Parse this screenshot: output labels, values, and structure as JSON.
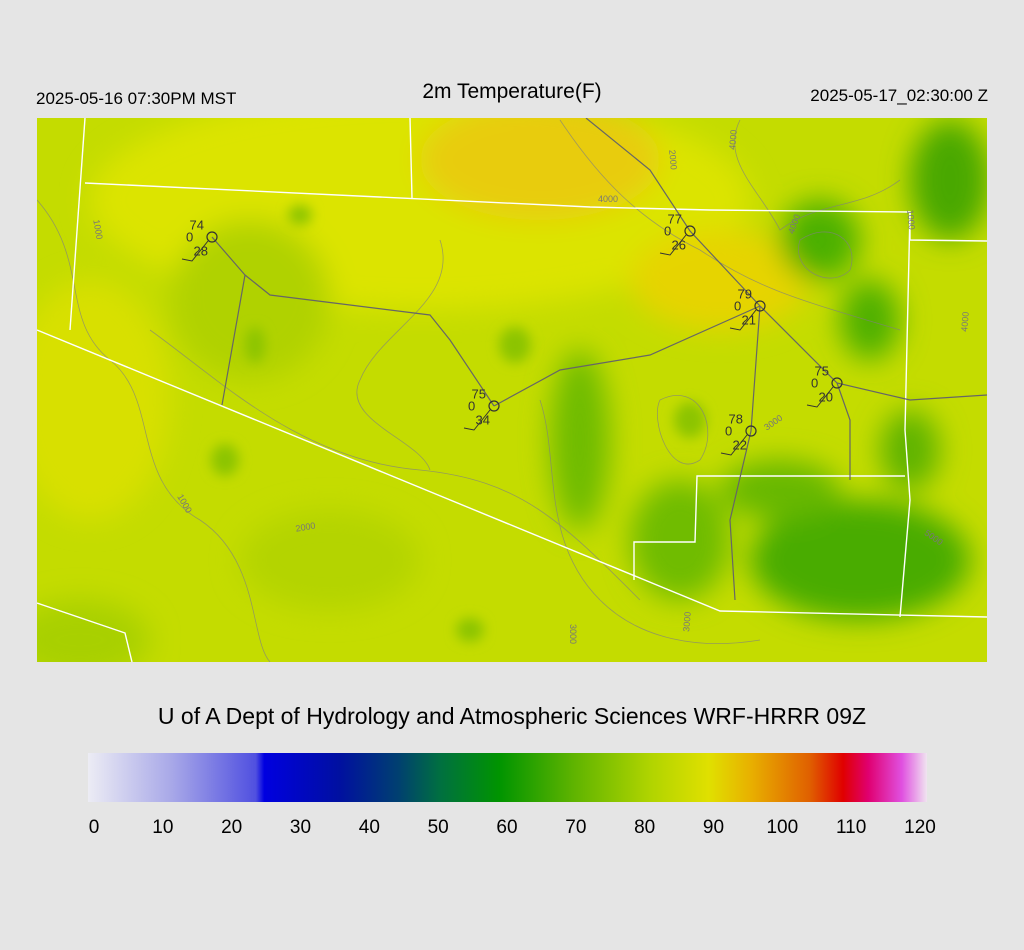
{
  "header": {
    "left": "2025-05-16 07:30PM MST",
    "title": "2m Temperature(F)",
    "right": "2025-05-17_02:30:00 Z"
  },
  "stations": [
    {
      "temp": 74,
      "wind": 0,
      "dewpoint": 28
    },
    {
      "temp": 77,
      "wind": 0,
      "dewpoint": 26
    },
    {
      "temp": 79,
      "wind": 0,
      "dewpoint": 21
    },
    {
      "temp": 75,
      "wind": 0,
      "dewpoint": 20
    },
    {
      "temp": 75,
      "wind": 0,
      "dewpoint": 34
    },
    {
      "temp": 78,
      "wind": 0,
      "dewpoint": 22
    }
  ],
  "contour_labels": [
    "1000",
    "1000",
    "2000",
    "2000",
    "3000",
    "3000",
    "3000",
    "4000",
    "4000",
    "4000",
    "5000",
    "1000",
    "4000"
  ],
  "footer": "U of A Dept of Hydrology and Atmospheric Sciences WRF-HRRR 09Z",
  "colorbar": {
    "ticks": [
      0,
      10,
      20,
      30,
      40,
      50,
      60,
      70,
      80,
      90,
      100,
      110,
      120
    ]
  }
}
